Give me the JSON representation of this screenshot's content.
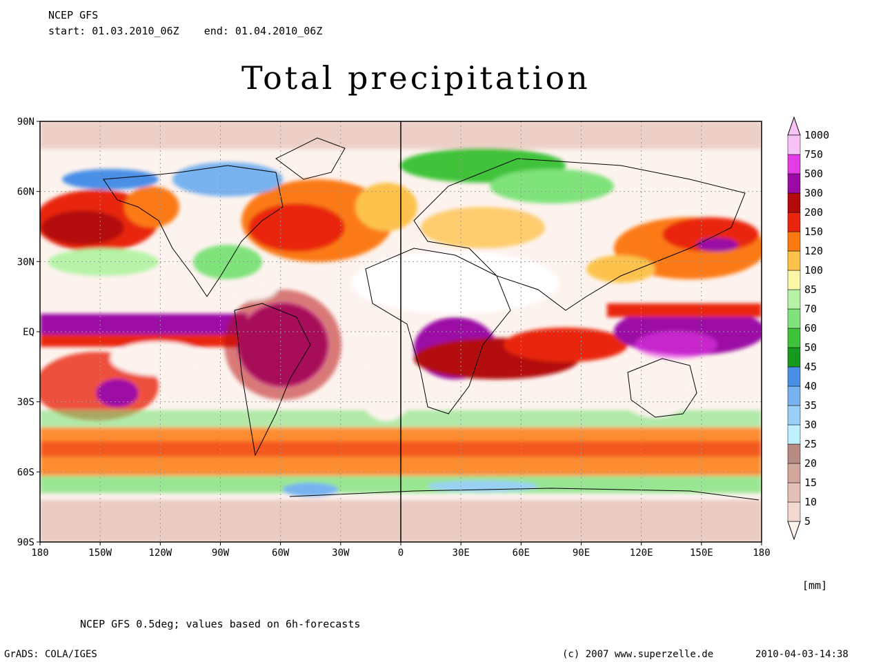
{
  "header": {
    "model": "NCEP GFS",
    "period": "start: 01.03.2010_06Z    end: 01.04.2010_06Z"
  },
  "title": "Total precipitation",
  "map": {
    "lat_labels": [
      "90N",
      "60N",
      "30N",
      "EQ",
      "30S",
      "60S",
      "90S"
    ],
    "lon_labels": [
      "180",
      "150W",
      "120W",
      "90W",
      "60W",
      "30W",
      "0",
      "30E",
      "60E",
      "90E",
      "120E",
      "150E",
      "180"
    ],
    "lon_range": [
      -180,
      180
    ],
    "lat_range": [
      -90,
      90
    ],
    "grid": "dotted",
    "prime_meridian_line": true
  },
  "legend": {
    "placement": "right",
    "levels": [
      "5",
      "10",
      "15",
      "20",
      "25",
      "30",
      "35",
      "40",
      "45",
      "50",
      "60",
      "70",
      "85",
      "100",
      "120",
      "150",
      "200",
      "300",
      "500",
      "750",
      "1000"
    ],
    "colors": [
      "#fdf3ee",
      "#f2d9d0",
      "#e4c1b6",
      "#d2a89c",
      "#b58b82",
      "#bff0ff",
      "#9ad0f7",
      "#78b2ef",
      "#4a8fe6",
      "#17981f",
      "#3fc33a",
      "#7fe27a",
      "#b6f3a6",
      "#fbf7a8",
      "#fcc24c",
      "#fb7a12",
      "#e9260d",
      "#b30b0b",
      "#9b0aa5",
      "#e23ce6",
      "#f7c3f7"
    ],
    "unit": "[mm]"
  },
  "footer": {
    "source": "NCEP GFS 0.5deg; values based on 6h-forecasts",
    "software": "GrADS: COLA/IGES",
    "copyright": "(c) 2007 www.superzelle.de",
    "timestamp": "2010-04-03-14:38"
  }
}
